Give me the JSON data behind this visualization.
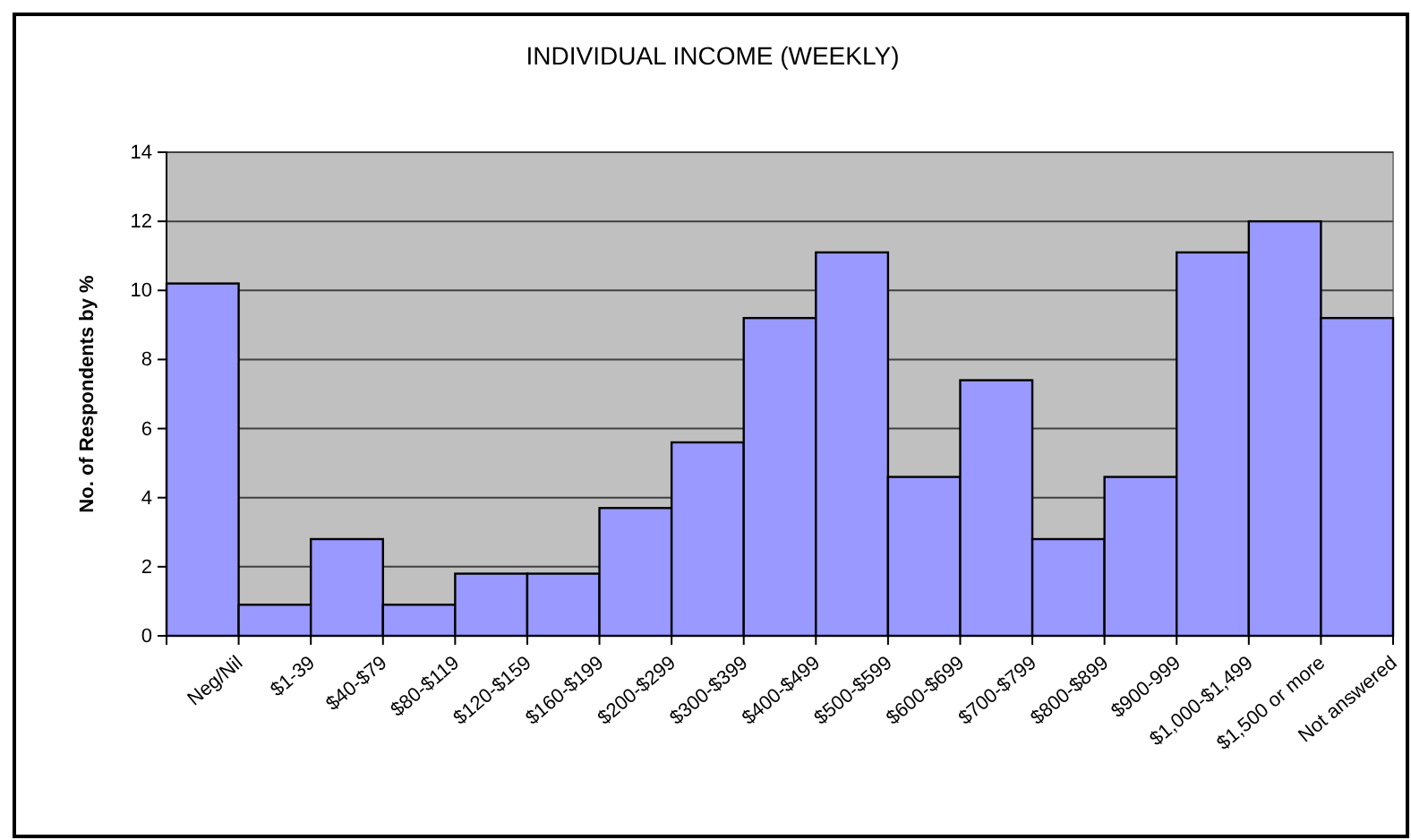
{
  "chart_data": {
    "type": "bar",
    "title": "INDIVIDUAL INCOME (WEEKLY)",
    "ylabel": "No. of Respondents by %",
    "categories": [
      "Neg/Nil",
      "$1-39",
      "$40-$79",
      "$80-$119",
      "$120-$159",
      "$160-$199",
      "$200-$299",
      "$300-$399",
      "$400-$499",
      "$500-$599",
      "$600-$699",
      "$700-$799",
      "$800-$899",
      "$900-999",
      "$1,000-$1,499",
      "$1,500 or more",
      "Not answered"
    ],
    "values": [
      10.2,
      0.9,
      2.8,
      0.9,
      1.8,
      1.8,
      3.7,
      5.6,
      9.2,
      11.1,
      4.6,
      7.4,
      2.8,
      4.6,
      11.1,
      12.0,
      9.2
    ],
    "color": "#9999ff",
    "ylim": [
      0,
      14
    ],
    "yticks": [
      0,
      2,
      4,
      6,
      8,
      10,
      12,
      14
    ],
    "grid": "y"
  }
}
